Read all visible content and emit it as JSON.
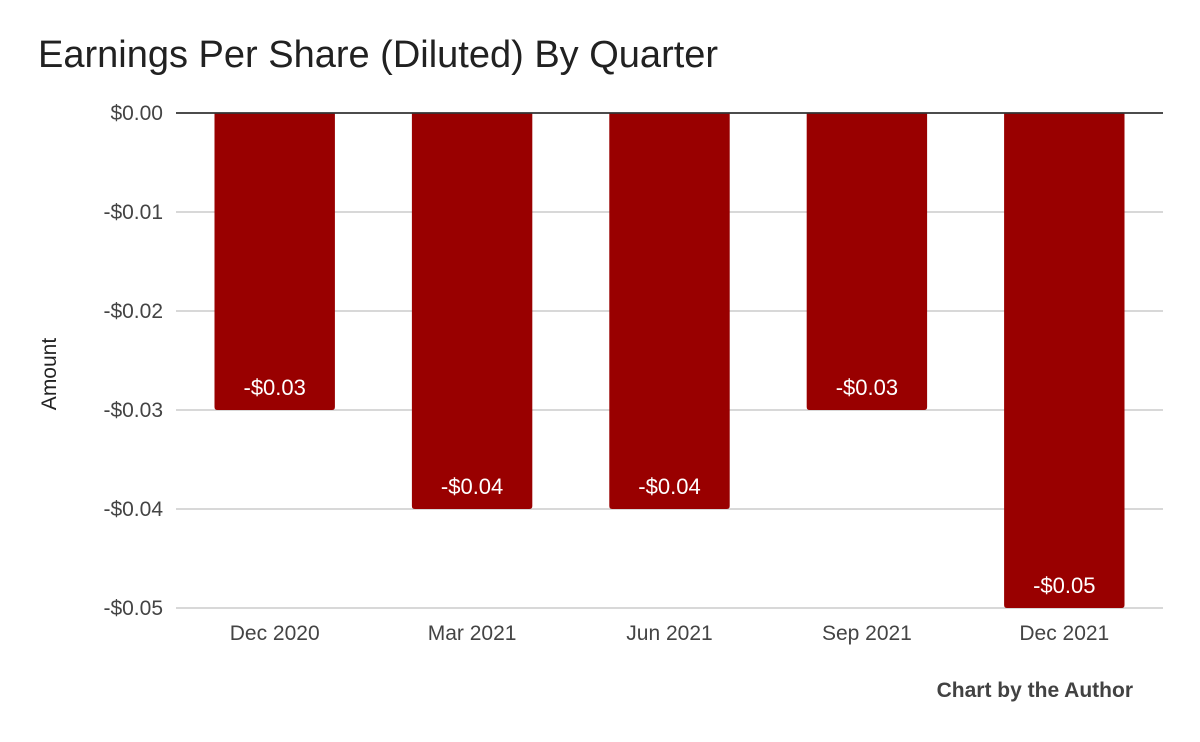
{
  "chart_data": {
    "type": "bar",
    "title": "Earnings Per Share (Diluted) By Quarter",
    "xlabel": "",
    "ylabel": "Amount",
    "categories": [
      "Dec 2020",
      "Mar 2021",
      "Jun 2021",
      "Sep 2021",
      "Dec 2021"
    ],
    "values": [
      -0.03,
      -0.04,
      -0.04,
      -0.03,
      -0.05
    ],
    "data_labels": [
      "-$0.03",
      "-$0.04",
      "-$0.04",
      "-$0.03",
      "-$0.05"
    ],
    "ylim": [
      -0.05,
      0
    ],
    "yticks": [
      0,
      -0.01,
      -0.02,
      -0.03,
      -0.04,
      -0.05
    ],
    "ytick_labels": [
      "$0.00",
      "-$0.01",
      "-$0.02",
      "-$0.03",
      "-$0.04",
      "-$0.05"
    ],
    "grid": true,
    "legend": "none",
    "bar_color": "#990000",
    "gridline_color": "#cccccc",
    "zero_line_color": "#333333"
  },
  "credit": "Chart by the Author"
}
